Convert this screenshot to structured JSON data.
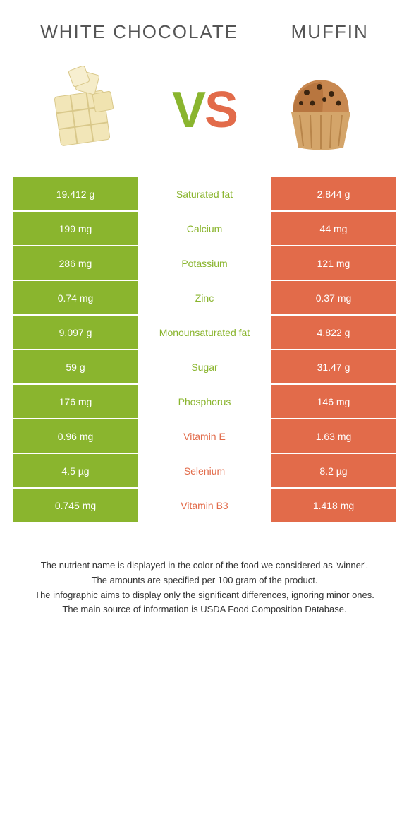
{
  "header": {
    "left_title": "WHITE CHOCOLATE",
    "right_title": "MUFFIN",
    "vs_v": "V",
    "vs_s": "S"
  },
  "colors": {
    "green": "#8ab52e",
    "orange": "#e26b4a",
    "text": "#555",
    "footer_text": "#333"
  },
  "table": {
    "rows": [
      {
        "left": "19.412 g",
        "label": "Saturated fat",
        "right": "2.844 g",
        "winner": "green"
      },
      {
        "left": "199 mg",
        "label": "Calcium",
        "right": "44 mg",
        "winner": "green"
      },
      {
        "left": "286 mg",
        "label": "Potassium",
        "right": "121 mg",
        "winner": "green"
      },
      {
        "left": "0.74 mg",
        "label": "Zinc",
        "right": "0.37 mg",
        "winner": "green"
      },
      {
        "left": "9.097 g",
        "label": "Monounsaturated fat",
        "right": "4.822 g",
        "winner": "green"
      },
      {
        "left": "59 g",
        "label": "Sugar",
        "right": "31.47 g",
        "winner": "green"
      },
      {
        "left": "176 mg",
        "label": "Phosphorus",
        "right": "146 mg",
        "winner": "green"
      },
      {
        "left": "0.96 mg",
        "label": "Vitamin E",
        "right": "1.63 mg",
        "winner": "orange"
      },
      {
        "left": "4.5 µg",
        "label": "Selenium",
        "right": "8.2 µg",
        "winner": "orange"
      },
      {
        "left": "0.745 mg",
        "label": "Vitamin B3",
        "right": "1.418 mg",
        "winner": "orange"
      }
    ]
  },
  "footer": {
    "line1": "The nutrient name is displayed in the color of the food we considered as 'winner'.",
    "line2": "The amounts are specified per 100 gram of the product.",
    "line3": "The infographic aims to display only the significant differences, ignoring minor ones.",
    "line4": "The main source of information is USDA Food Composition Database."
  }
}
